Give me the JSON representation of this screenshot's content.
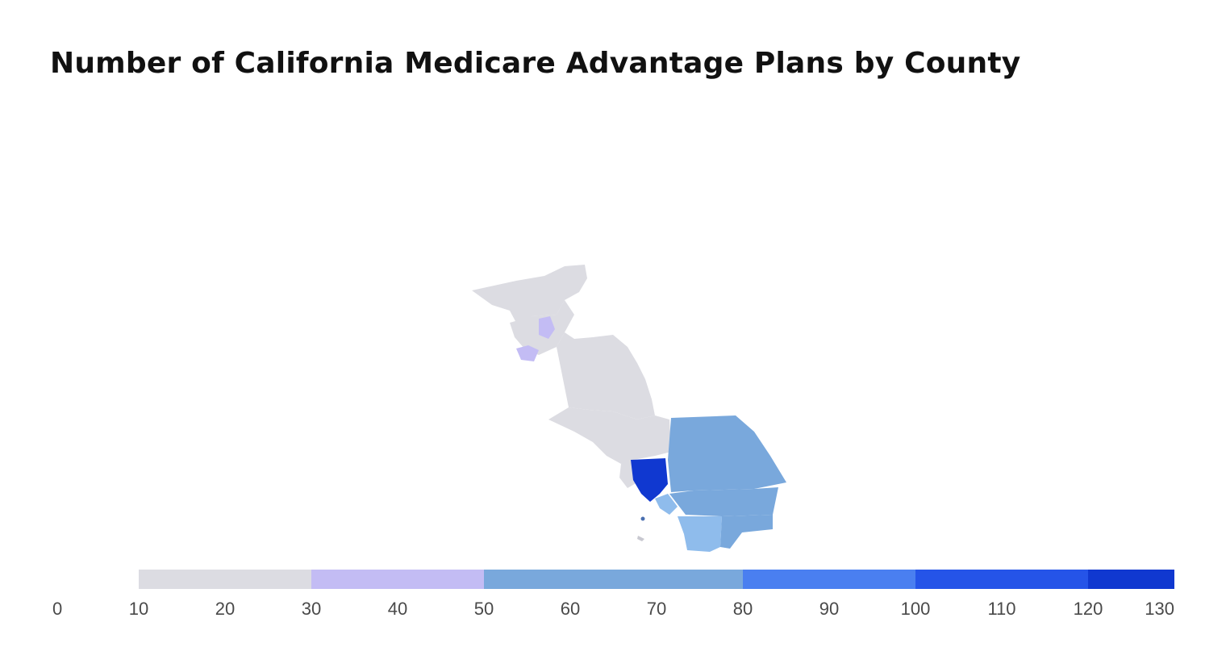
{
  "title": "Number of California Medicare Advantage Plans by County",
  "legend": {
    "min": 0,
    "max": 130,
    "ticks": [
      "0",
      "10",
      "20",
      "30",
      "40",
      "50",
      "60",
      "70",
      "80",
      "90",
      "100",
      "110",
      "120",
      "130"
    ],
    "bins": [
      {
        "from": 10,
        "to": 30,
        "color": "#dcdce2"
      },
      {
        "from": 30,
        "to": 50,
        "color": "#c3bcf4"
      },
      {
        "from": 50,
        "to": 80,
        "color": "#79a8dc"
      },
      {
        "from": 80,
        "to": 100,
        "color": "#4a7ff0"
      },
      {
        "from": 100,
        "to": 120,
        "color": "#2554e8"
      },
      {
        "from": 120,
        "to": 130,
        "color": "#1038d0"
      }
    ]
  },
  "colors": {
    "low": "#dcdce2",
    "purple": "#c3bcf4",
    "mid_blue": "#79a8dc",
    "light_blue": "#8fbcec",
    "dark_blue": "#1038d0"
  }
}
